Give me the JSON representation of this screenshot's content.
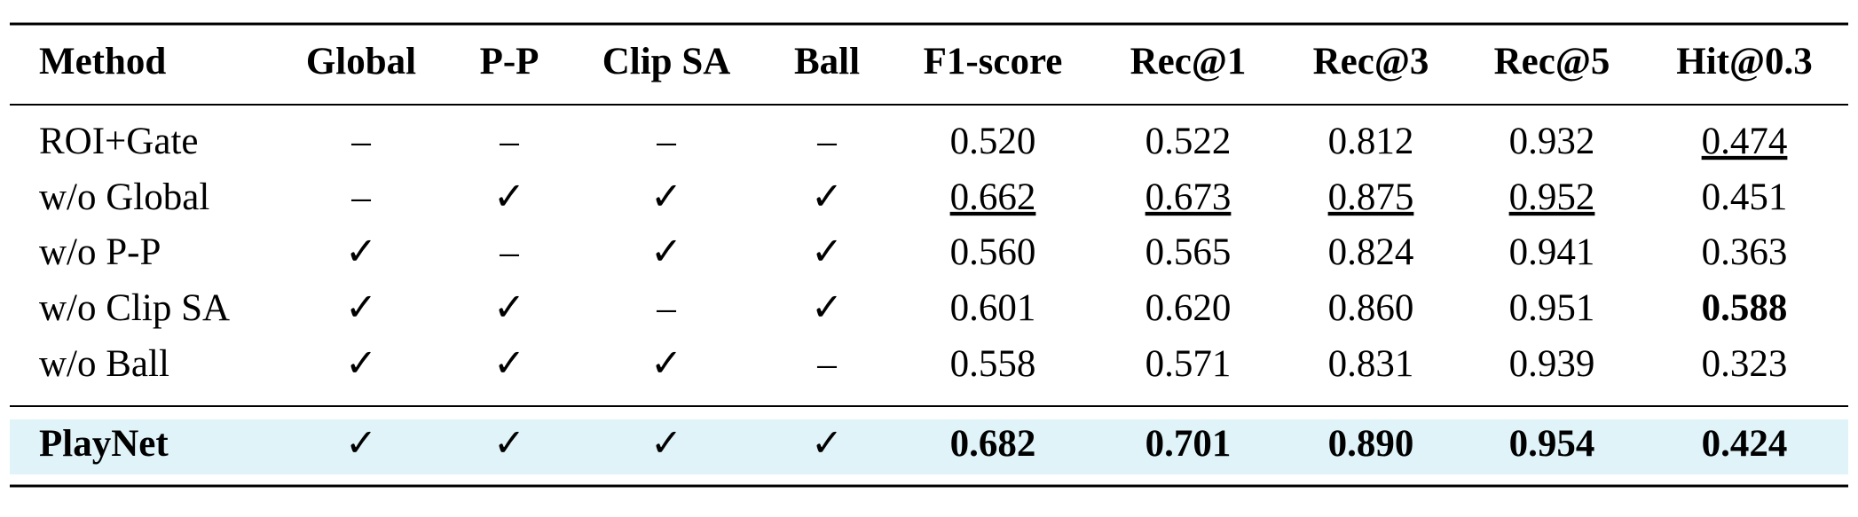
{
  "table": {
    "header": [
      "Method",
      "Global",
      "P-P",
      "Clip SA",
      "Ball",
      "F1-score",
      "Rec@1",
      "Rec@3",
      "Rec@5",
      "Hit@0.3"
    ],
    "rows": [
      [
        "ROI+Gate",
        "–",
        "–",
        "–",
        "–",
        "0.520",
        "0.522",
        "0.812",
        "0.932",
        {
          "text": "0.474",
          "underline": true
        }
      ],
      [
        "w/o Global",
        "–",
        "✓",
        "✓",
        "✓",
        {
          "text": "0.662",
          "underline": true
        },
        {
          "text": "0.673",
          "underline": true
        },
        {
          "text": "0.875",
          "underline": true
        },
        {
          "text": "0.952",
          "underline": true
        },
        "0.451"
      ],
      [
        "w/o P-P",
        "✓",
        "–",
        "✓",
        "✓",
        "0.560",
        "0.565",
        "0.824",
        "0.941",
        "0.363"
      ],
      [
        "w/o Clip SA",
        "✓",
        "✓",
        "–",
        "✓",
        "0.601",
        "0.620",
        "0.860",
        "0.951",
        {
          "text": "0.588",
          "bold": true,
          "color": "#ff0000"
        }
      ],
      [
        "w/o Ball",
        "✓",
        "✓",
        "✓",
        "–",
        "0.558",
        "0.571",
        "0.831",
        "0.939",
        "0.323"
      ]
    ],
    "highlight_row": [
      {
        "text": "PlayNet",
        "bold": true
      },
      "✓",
      "✓",
      "✓",
      "✓",
      {
        "text": "0.682",
        "bold": true,
        "color": "#ff0000"
      },
      {
        "text": "0.701",
        "bold": true,
        "color": "#ff0000"
      },
      {
        "text": "0.890",
        "bold": true,
        "color": "#ff0000"
      },
      {
        "text": "0.954",
        "bold": true,
        "color": "#ff0000"
      },
      {
        "text": "0.424",
        "bold": true
      }
    ],
    "highlight_color": "#dff3f8"
  }
}
